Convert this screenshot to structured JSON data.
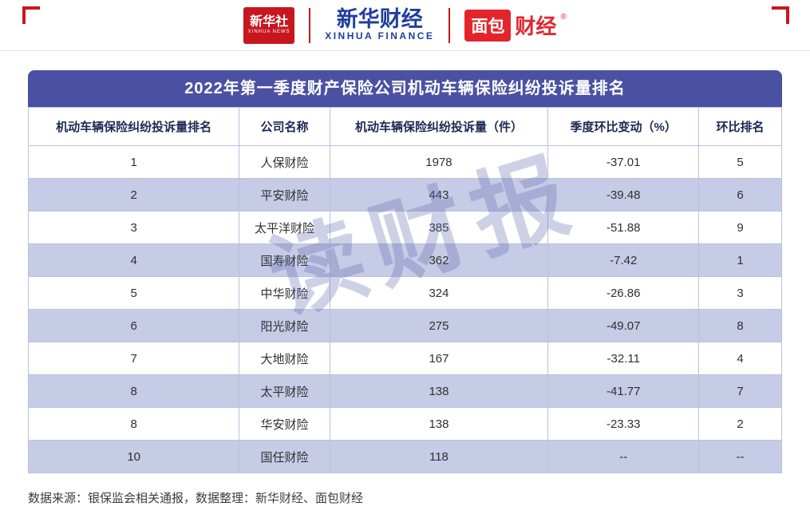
{
  "meta": {
    "watermark": "读财报"
  },
  "logos": {
    "agency_name": "新华社",
    "agency_sub": "XINHUA NEWS",
    "finance_name": "新华财经",
    "finance_sub": "XINHUA FINANCE",
    "bread_block": "面包",
    "bread_text": "财经",
    "bread_reg": "®"
  },
  "chart_data": {
    "type": "table",
    "title": "2022年第一季度财产保险公司机动车辆保险纠纷投诉量排名",
    "columns": [
      "机动车辆保险纠纷投诉量排名",
      "公司名称",
      "机动车辆保险纠纷投诉量（件）",
      "季度环比变动（%）",
      "环比排名"
    ],
    "rows": [
      [
        "1",
        "人保财险",
        "1978",
        "-37.01",
        "5"
      ],
      [
        "2",
        "平安财险",
        "443",
        "-39.48",
        "6"
      ],
      [
        "3",
        "太平洋财险",
        "385",
        "-51.88",
        "9"
      ],
      [
        "4",
        "国寿财险",
        "362",
        "-7.42",
        "1"
      ],
      [
        "5",
        "中华财险",
        "324",
        "-26.86",
        "3"
      ],
      [
        "6",
        "阳光财险",
        "275",
        "-49.07",
        "8"
      ],
      [
        "7",
        "大地财险",
        "167",
        "-32.11",
        "4"
      ],
      [
        "8",
        "太平财险",
        "138",
        "-41.77",
        "7"
      ],
      [
        "8",
        "华安财险",
        "138",
        "-23.33",
        "2"
      ],
      [
        "10",
        "国任财险",
        "118",
        "--",
        "--"
      ]
    ],
    "legend_position": "none",
    "grid": true
  },
  "footer": {
    "text": "数据来源：银保监会相关通报，数据整理：新华财经、面包财经"
  },
  "colors": {
    "accent_red": "#c8161e",
    "bread_red": "#e3252b",
    "finance_blue": "#1f3e9e",
    "title_bg": "#4b51a2",
    "row_alt": "#c6cbe6",
    "table_border": "#b8c2e0",
    "watermark": "rgba(93,102,170,0.30)"
  }
}
